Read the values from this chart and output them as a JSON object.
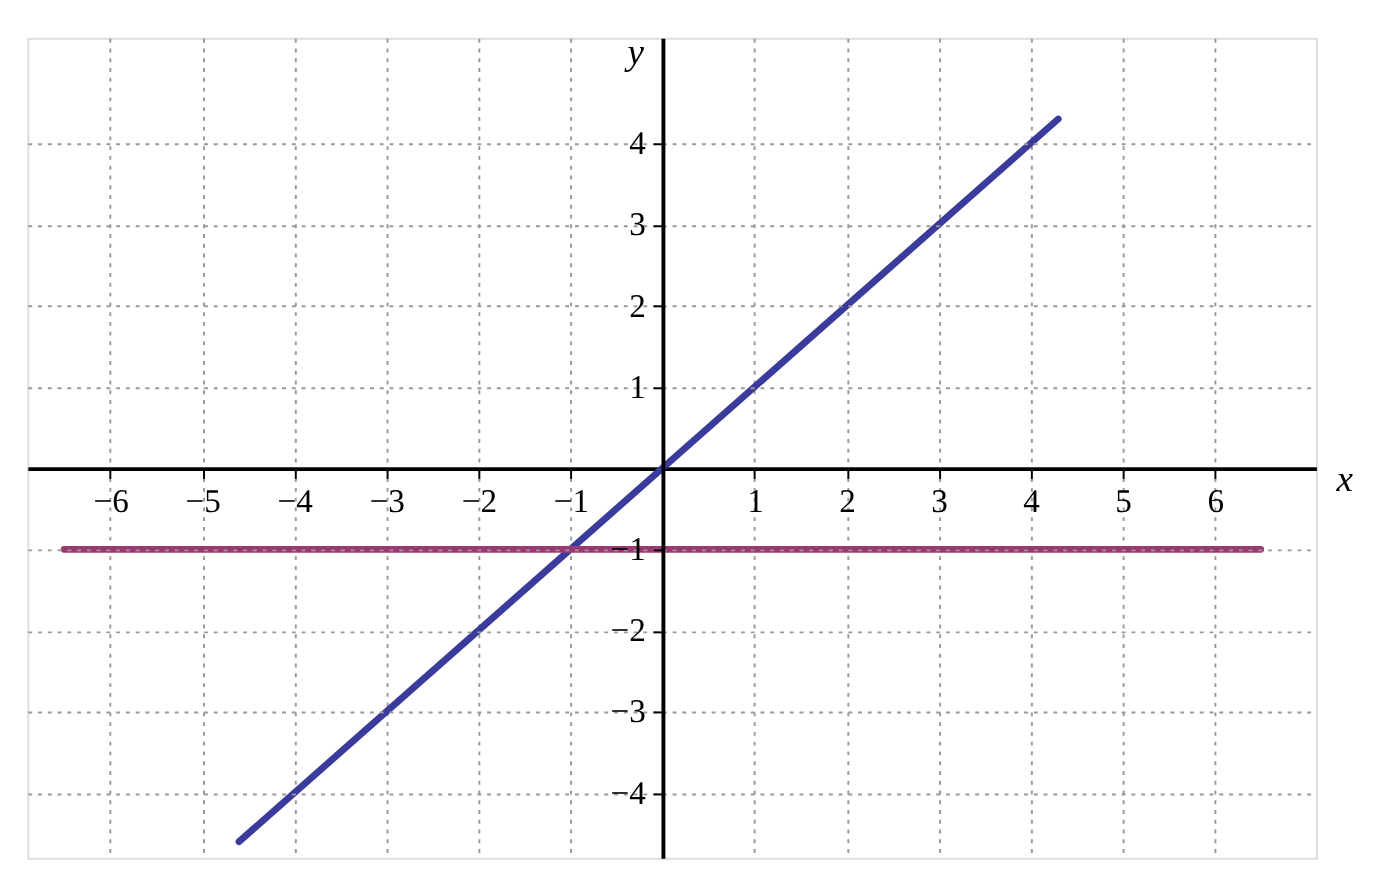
{
  "chart_data": {
    "type": "line",
    "xlabel": "x",
    "ylabel": "y",
    "series": [
      {
        "color": "#3b3b9c",
        "x": [
          -4.6,
          4.3
        ],
        "values": [
          -4.6,
          4.3
        ]
      },
      {
        "color": "#9b3a72",
        "x": [
          -6.5,
          6.5
        ],
        "values": [
          -1,
          -1
        ]
      }
    ],
    "xlim": [
      -6.9,
      7.1
    ],
    "ylim": [
      -4.8,
      5.3
    ],
    "xticks": [
      {
        "value": -6,
        "label": "−6"
      },
      {
        "value": -5,
        "label": "−5"
      },
      {
        "value": -4,
        "label": "−4"
      },
      {
        "value": -3,
        "label": "−3"
      },
      {
        "value": -2,
        "label": "−2"
      },
      {
        "value": -1,
        "label": "−1"
      },
      1,
      2,
      3,
      4,
      5,
      6
    ],
    "yticks": [
      {
        "value": -4,
        "label": "−4"
      },
      {
        "value": -3,
        "label": "−3"
      },
      {
        "value": -2,
        "label": "−2"
      },
      {
        "value": -1,
        "label": "−1"
      },
      1,
      2,
      3,
      4
    ],
    "grid": true,
    "marker": "none",
    "line_style": "solid"
  }
}
